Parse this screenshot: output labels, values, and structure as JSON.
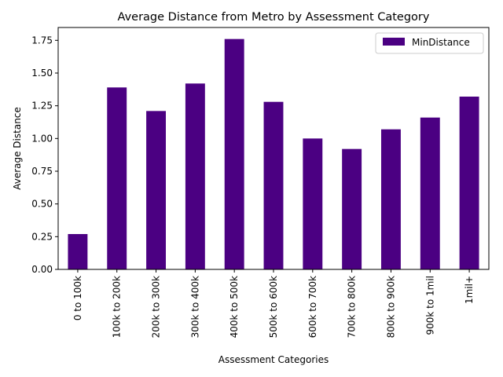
{
  "chart_data": {
    "type": "bar",
    "title": "Average Distance from Metro by Assessment Category",
    "xlabel": "Assessment Categories",
    "ylabel": "Average Distance",
    "categories": [
      "0 to 100k",
      "100k to 200k",
      "200k to 300k",
      "300k to 400k",
      "400k to 500k",
      "500k to 600k",
      "600k to 700k",
      "700k to 800k",
      "800k to 900k",
      "900k to 1mil",
      "1mil+"
    ],
    "series": [
      {
        "name": "MinDistance",
        "color": "#4b0082",
        "values": [
          0.27,
          1.39,
          1.21,
          1.42,
          1.76,
          1.28,
          1.0,
          0.92,
          1.07,
          1.16,
          1.32
        ]
      }
    ],
    "ylim": [
      0,
      1.848
    ],
    "yticks": [
      "0.00",
      "0.25",
      "0.50",
      "0.75",
      "1.00",
      "1.25",
      "1.50",
      "1.75"
    ],
    "legend": {
      "placement": "top-right"
    },
    "grid": false
  }
}
